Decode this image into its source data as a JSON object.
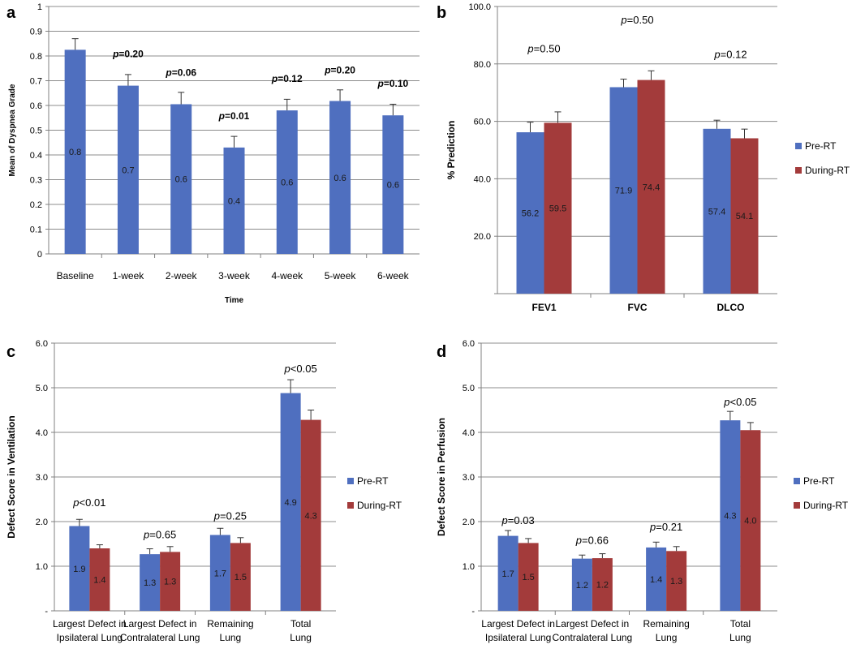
{
  "colors": {
    "pre": "#4f6fbf",
    "during": "#a33b3b",
    "grid": "#8c8c8c",
    "axis": "#808080"
  },
  "chart_data": [
    {
      "panel": "a",
      "type": "bar",
      "title": "",
      "xlabel": "Time",
      "ylabel": "Mean of Dyspnea Grade",
      "ylim": [
        0,
        1
      ],
      "yticks": [
        "0",
        "0.1",
        "0.2",
        "0.3",
        "0.4",
        "0.5",
        "0.6",
        "0.7",
        "0.8",
        "0.9",
        "1"
      ],
      "categories": [
        "Baseline",
        "1-week",
        "2-week",
        "3-week",
        "4-week",
        "5-week",
        "6-week"
      ],
      "series": [
        {
          "name": "Mean",
          "values": [
            0.825,
            0.68,
            0.605,
            0.43,
            0.58,
            0.618,
            0.56
          ],
          "errors": [
            0.045,
            0.045,
            0.048,
            0.045,
            0.045,
            0.045,
            0.045
          ],
          "labels": [
            "0.8",
            "0.7",
            "0.6",
            "0.4",
            "0.6",
            "0.6",
            "0.6"
          ]
        }
      ],
      "annotations": [
        {
          "category": 1,
          "level": 0.795,
          "p": "p",
          "text": "=0.20"
        },
        {
          "category": 2,
          "level": 0.72,
          "p": "p",
          "text": "=0.06"
        },
        {
          "category": 3,
          "level": 0.545,
          "p": "p",
          "text": "=0.01"
        },
        {
          "category": 4,
          "level": 0.695,
          "p": "p",
          "text": "=0.12"
        },
        {
          "category": 5,
          "level": 0.73,
          "p": "p",
          "text": "=0.20"
        },
        {
          "category": 6,
          "level": 0.675,
          "p": "p",
          "text": "=0.10"
        }
      ]
    },
    {
      "panel": "b",
      "type": "bar",
      "title": "",
      "xlabel": "",
      "ylabel": "% Prediction",
      "ylim": [
        0,
        100
      ],
      "yticks": [
        "",
        "20.0",
        "40.0",
        "60.0",
        "80.0",
        "100.0"
      ],
      "categories": [
        "FEV1",
        "FVC",
        "DLCO"
      ],
      "series": [
        {
          "name": "Pre-RT",
          "values": [
            56.2,
            71.9,
            57.4
          ],
          "errors": [
            3.5,
            2.8,
            3.0
          ],
          "labels": [
            "56.2",
            "71.9",
            "57.4"
          ]
        },
        {
          "name": "During-RT",
          "values": [
            59.5,
            74.4,
            54.1
          ],
          "errors": [
            3.8,
            3.2,
            3.2
          ],
          "labels": [
            "59.5",
            "74.4",
            "54.1"
          ]
        }
      ],
      "annotations": [
        {
          "category": 0,
          "level": 84,
          "p": "p",
          "text": "=0.50"
        },
        {
          "category": 1,
          "level": 94,
          "p": "p",
          "text": "=0.50"
        },
        {
          "category": 2,
          "level": 82,
          "p": "p",
          "text": "=0.12"
        }
      ]
    },
    {
      "panel": "c",
      "type": "bar",
      "title": "",
      "xlabel": "",
      "ylabel": "Defect Score in Ventilation",
      "ylim": [
        0,
        6
      ],
      "yticks": [
        "-",
        "1.0",
        "2.0",
        "3.0",
        "4.0",
        "5.0",
        "6.0"
      ],
      "categories": [
        [
          "Largest Defect in",
          "Ipsilateral Lung"
        ],
        [
          "Largest Defect in",
          "Contralateral Lung"
        ],
        [
          "Remaining",
          "Lung"
        ],
        [
          "Total",
          "Lung"
        ]
      ],
      "series": [
        {
          "name": "Pre-RT",
          "values": [
            1.9,
            1.27,
            1.7,
            4.88
          ],
          "errors": [
            0.15,
            0.12,
            0.15,
            0.3
          ],
          "labels": [
            "1.9",
            "1.3",
            "1.7",
            "4.9"
          ]
        },
        {
          "name": "During-RT",
          "values": [
            1.4,
            1.32,
            1.52,
            4.28
          ],
          "errors": [
            0.08,
            0.12,
            0.12,
            0.22
          ],
          "labels": [
            "1.4",
            "1.3",
            "1.5",
            "4.3"
          ]
        }
      ],
      "annotations": [
        {
          "category": 0,
          "level": 2.35,
          "p": "p",
          "text": "<0.01"
        },
        {
          "category": 1,
          "level": 1.63,
          "p": "p",
          "text": "=0.65"
        },
        {
          "category": 2,
          "level": 2.05,
          "p": "p",
          "text": "=0.25"
        },
        {
          "category": 3,
          "level": 5.35,
          "p": "p",
          "text": "<0.05"
        }
      ]
    },
    {
      "panel": "d",
      "type": "bar",
      "title": "",
      "xlabel": "",
      "ylabel": "Defect Score in Perfusion",
      "ylim": [
        0,
        6
      ],
      "yticks": [
        "-",
        "1.0",
        "2.0",
        "3.0",
        "4.0",
        "5.0",
        "6.0"
      ],
      "categories": [
        [
          "Largest Defect in",
          "Ipsilateral Lung"
        ],
        [
          "Largest Defect in",
          "Contralateral Lung"
        ],
        [
          "Remaining",
          "Lung"
        ],
        [
          "Total",
          "Lung"
        ]
      ],
      "series": [
        {
          "name": "Pre-RT",
          "values": [
            1.68,
            1.17,
            1.42,
            4.27
          ],
          "errors": [
            0.12,
            0.08,
            0.12,
            0.2
          ],
          "labels": [
            "1.7",
            "1.2",
            "1.4",
            "4.3"
          ]
        },
        {
          "name": "During-RT",
          "values": [
            1.52,
            1.18,
            1.34,
            4.05
          ],
          "errors": [
            0.1,
            0.1,
            0.1,
            0.17
          ],
          "labels": [
            "1.5",
            "1.2",
            "1.3",
            "4.0"
          ]
        }
      ],
      "annotations": [
        {
          "category": 0,
          "level": 1.95,
          "p": "p",
          "text": "=0.03"
        },
        {
          "category": 1,
          "level": 1.5,
          "p": "p",
          "text": "=0.66"
        },
        {
          "category": 2,
          "level": 1.8,
          "p": "p",
          "text": "=0.21"
        },
        {
          "category": 3,
          "level": 4.6,
          "p": "p",
          "text": "<0.05"
        }
      ]
    }
  ]
}
